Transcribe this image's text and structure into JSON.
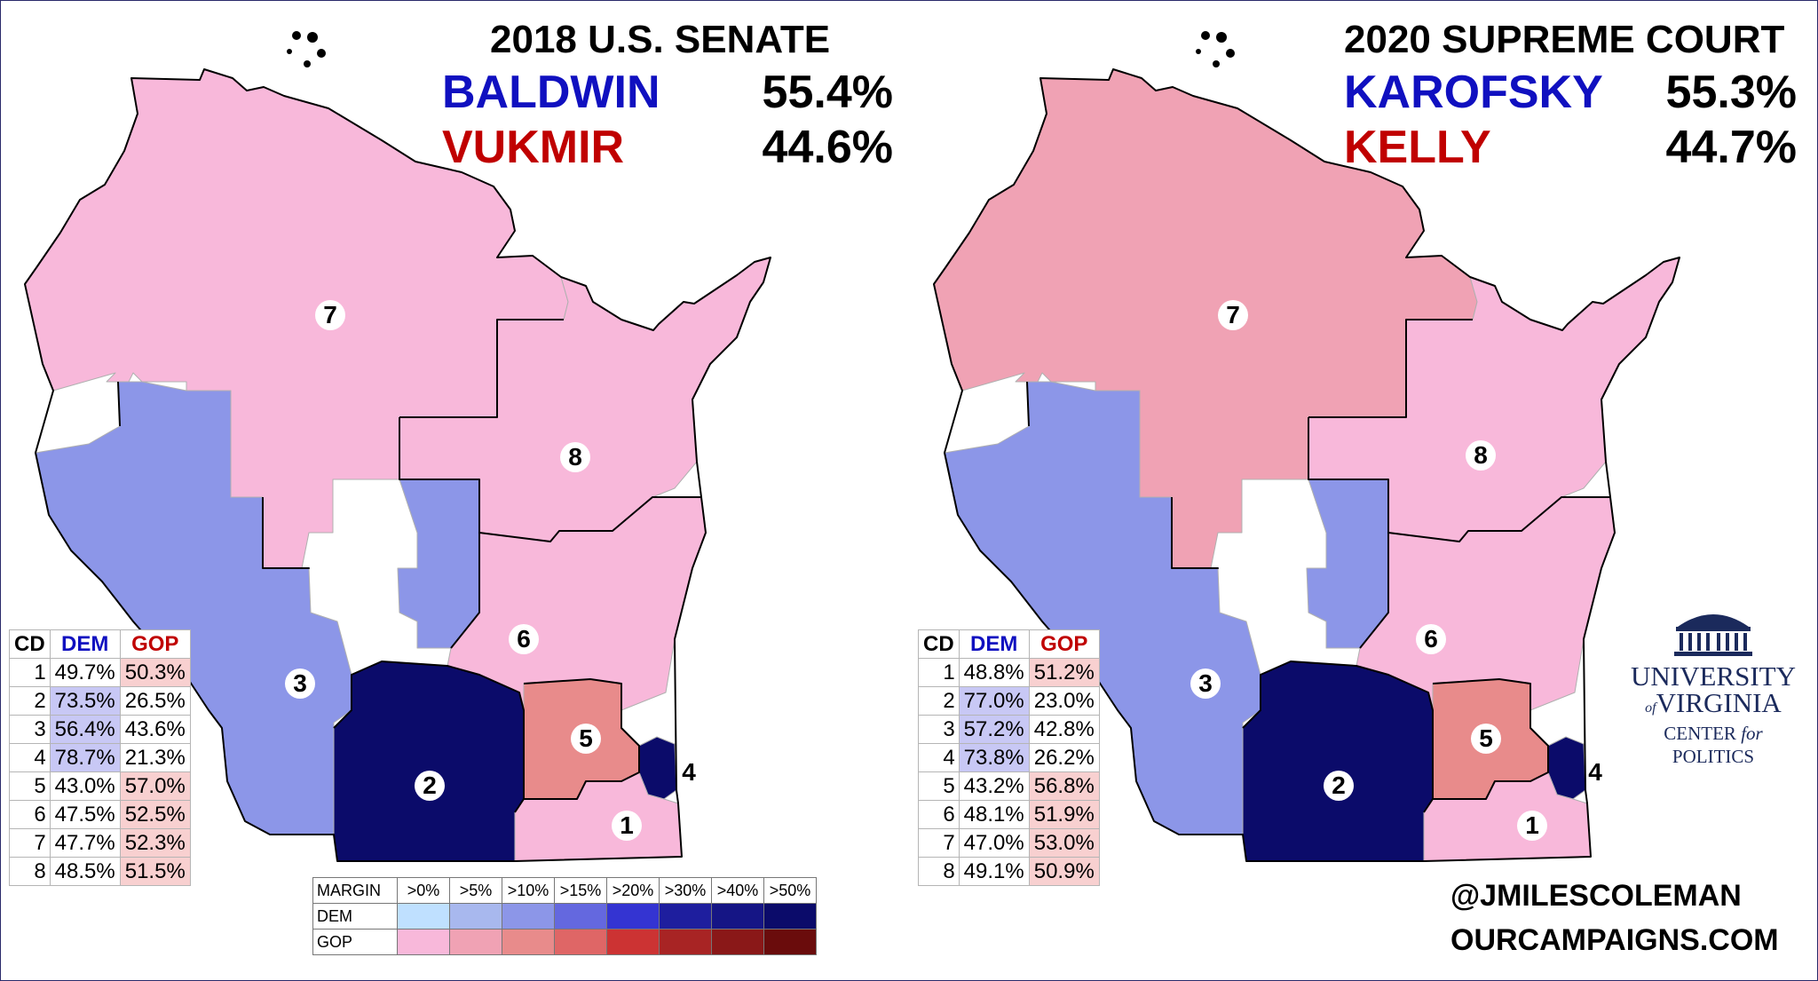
{
  "left": {
    "title": "2018 U.S. SENATE",
    "dem_name": "BALDWIN",
    "dem_pct": "55.4%",
    "gop_name": "VUKMIR",
    "gop_pct": "44.6%",
    "table": {
      "headers": [
        "CD",
        "DEM",
        "GOP"
      ],
      "rows": [
        {
          "cd": "1",
          "dem": "49.7%",
          "gop": "50.3%"
        },
        {
          "cd": "2",
          "dem": "73.5%",
          "gop": "26.5%"
        },
        {
          "cd": "3",
          "dem": "56.4%",
          "gop": "43.6%"
        },
        {
          "cd": "4",
          "dem": "78.7%",
          "gop": "21.3%"
        },
        {
          "cd": "5",
          "dem": "43.0%",
          "gop": "57.0%"
        },
        {
          "cd": "6",
          "dem": "47.5%",
          "gop": "52.5%"
        },
        {
          "cd": "7",
          "dem": "47.7%",
          "gop": "52.3%"
        },
        {
          "cd": "8",
          "dem": "48.5%",
          "gop": "51.5%"
        }
      ]
    }
  },
  "right": {
    "title": "2020 SUPREME COURT",
    "dem_name": "KAROFSKY",
    "dem_pct": "55.3%",
    "gop_name": "KELLY",
    "gop_pct": "44.7%",
    "table": {
      "headers": [
        "CD",
        "DEM",
        "GOP"
      ],
      "rows": [
        {
          "cd": "1",
          "dem": "48.8%",
          "gop": "51.2%"
        },
        {
          "cd": "2",
          "dem": "77.0%",
          "gop": "23.0%"
        },
        {
          "cd": "3",
          "dem": "57.2%",
          "gop": "42.8%"
        },
        {
          "cd": "4",
          "dem": "73.8%",
          "gop": "26.2%"
        },
        {
          "cd": "5",
          "dem": "43.2%",
          "gop": "56.8%"
        },
        {
          "cd": "6",
          "dem": "48.1%",
          "gop": "51.9%"
        },
        {
          "cd": "7",
          "dem": "47.0%",
          "gop": "53.0%"
        },
        {
          "cd": "8",
          "dem": "49.1%",
          "gop": "50.9%"
        }
      ]
    }
  },
  "district_labels": [
    "1",
    "2",
    "3",
    "4",
    "5",
    "6",
    "7",
    "8"
  ],
  "legend": {
    "header": "MARGIN",
    "bins": [
      ">0%",
      ">5%",
      ">10%",
      ">15%",
      ">20%",
      ">30%",
      ">40%",
      ">50%"
    ],
    "dem_label": "DEM",
    "gop_label": "GOP",
    "dem_colors": [
      "#bfe0ff",
      "#a8b8ee",
      "#8c96e8",
      "#6468df",
      "#3434d2",
      "#1e1e9e",
      "#151585",
      "#0b0b6a"
    ],
    "gop_colors": [
      "#f8b8da",
      "#f0a2b4",
      "#e88b8b",
      "#df6666",
      "#cc3333",
      "#a82424",
      "#8a1818",
      "#6a0c0c"
    ]
  },
  "logo": {
    "line1": "UNIVERSITY",
    "line2": "VIRGINIA",
    "of": "of",
    "line3_a": "CENTER",
    "line3_for": "for",
    "line3_b": "POLITICS"
  },
  "credits": {
    "twitter": "@JMILESCOLEMAN",
    "site": "OURCAMPAIGNS.COM"
  },
  "colors": {
    "dem_text": "#1010c0",
    "gop_text": "#c00000",
    "dem_cell": "#c8c8f5",
    "gop_cell": "#f8d0d0"
  }
}
